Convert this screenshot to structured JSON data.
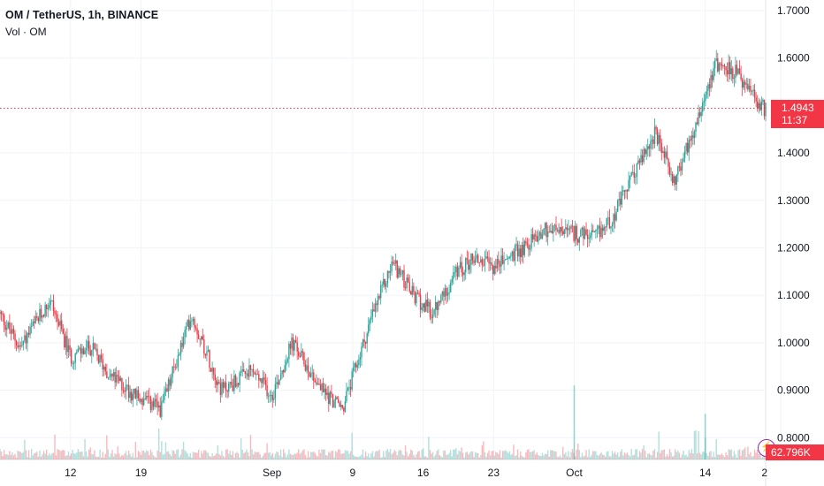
{
  "legend": {
    "title": "OM / TetherUS, 1h, BINANCE",
    "volume_label": "Vol · OM"
  },
  "price_axis": {
    "ticks": [
      "1.7000",
      "1.6000",
      "1.4000",
      "1.3000",
      "1.2000",
      "1.1000",
      "1.0000",
      "0.9000",
      "0.8000"
    ]
  },
  "time_axis": {
    "ticks": [
      "12",
      "19",
      "Sep",
      "9",
      "16",
      "23",
      "Oct",
      "14",
      "2"
    ]
  },
  "last_price": {
    "value": "1.4943",
    "countdown": "11:37"
  },
  "volume_badge": "62.796K",
  "colors": {
    "up": "#26a69a",
    "down": "#f23645",
    "grid": "#f0f3fa",
    "text": "#131722",
    "price_line": "#f23645",
    "icon": "#9c27b0"
  },
  "chart_data": {
    "type": "candlestick",
    "symbol": "OM / TetherUS",
    "interval": "1h",
    "exchange": "BINANCE",
    "ylim": [
      0.78,
      1.72
    ],
    "last_price": 1.4943,
    "price_path": [
      {
        "x": "Aug 5",
        "y": 1.06
      },
      {
        "x": "Aug 7",
        "y": 0.99
      },
      {
        "x": "Aug 10",
        "y": 1.09
      },
      {
        "x": "Aug 12",
        "y": 0.97
      },
      {
        "x": "Aug 14",
        "y": 0.99
      },
      {
        "x": "Aug 16",
        "y": 0.93
      },
      {
        "x": "Aug 19",
        "y": 0.88
      },
      {
        "x": "Aug 21",
        "y": 0.86
      },
      {
        "x": "Aug 24",
        "y": 1.06
      },
      {
        "x": "Aug 27",
        "y": 0.9
      },
      {
        "x": "Aug 30",
        "y": 0.94
      },
      {
        "x": "Sep 1",
        "y": 0.89
      },
      {
        "x": "Sep 3",
        "y": 1.0
      },
      {
        "x": "Sep 6",
        "y": 0.9
      },
      {
        "x": "Sep 8",
        "y": 0.86
      },
      {
        "x": "Sep 11",
        "y": 1.06
      },
      {
        "x": "Sep 13",
        "y": 1.17
      },
      {
        "x": "Sep 15",
        "y": 1.1
      },
      {
        "x": "Sep 17",
        "y": 1.06
      },
      {
        "x": "Sep 19",
        "y": 1.14
      },
      {
        "x": "Sep 21",
        "y": 1.18
      },
      {
        "x": "Sep 23",
        "y": 1.16
      },
      {
        "x": "Sep 26",
        "y": 1.2
      },
      {
        "x": "Sep 28",
        "y": 1.24
      },
      {
        "x": "Oct 1",
        "y": 1.23
      },
      {
        "x": "Oct 3",
        "y": 1.22
      },
      {
        "x": "Oct 5",
        "y": 1.27
      },
      {
        "x": "Oct 7",
        "y": 1.36
      },
      {
        "x": "Oct 9",
        "y": 1.44
      },
      {
        "x": "Oct 11",
        "y": 1.34
      },
      {
        "x": "Oct 13",
        "y": 1.46
      },
      {
        "x": "Oct 15",
        "y": 1.59
      },
      {
        "x": "Oct 17",
        "y": 1.57
      },
      {
        "x": "Oct 19",
        "y": 1.51
      },
      {
        "x": "Oct 20",
        "y": 1.49
      }
    ],
    "volume_spikes": [
      {
        "x": "Oct 1",
        "value": 0.91
      },
      {
        "x": "Oct 14",
        "value": 0.85
      }
    ],
    "grid": true
  }
}
